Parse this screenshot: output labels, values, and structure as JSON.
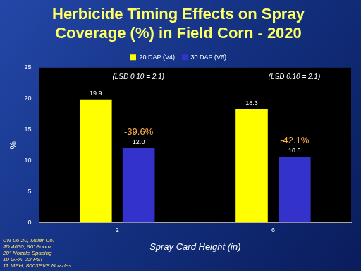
{
  "chart_data": {
    "type": "bar",
    "title": [
      "Herbicide Timing Effects on Spray",
      "Coverage (%) in Field Corn - 2020"
    ],
    "categories": [
      "2",
      "6"
    ],
    "series": [
      {
        "name": "20 DAP (V4)",
        "color": "#ffff00",
        "values": [
          19.9,
          18.3
        ],
        "value_labels": [
          "19.9",
          "18.3"
        ]
      },
      {
        "name": "30 DAP (V6)",
        "color": "#3333cc",
        "values": [
          12.0,
          10.6
        ],
        "value_labels": [
          "12.0",
          "10.6"
        ]
      }
    ],
    "x_label": "Spray Card Height (in)",
    "y_label": "%",
    "ylim": [
      0,
      25
    ],
    "yticks": [
      0,
      5,
      10,
      15,
      20,
      25
    ],
    "grid": false,
    "legend": "top",
    "data_labels": true,
    "annotations": [
      {
        "text": "(LSD 0.10 = 2.1)",
        "category": "2"
      },
      {
        "text": "(LSD 0.10 = 2.1)",
        "category": "6"
      },
      {
        "text": "-39.6%",
        "category": "2",
        "series": "30 DAP (V6)"
      },
      {
        "text": "-42.1%",
        "category": "6",
        "series": "30 DAP (V6)"
      }
    ],
    "footnote": [
      "CN-06-20, Miller Co.",
      "JD 4630, 90' Boom",
      "20\" Nozzle Spacing",
      "10 GPA, 32 PSI",
      "11 MPH, 8003EVS Nozzles"
    ]
  }
}
